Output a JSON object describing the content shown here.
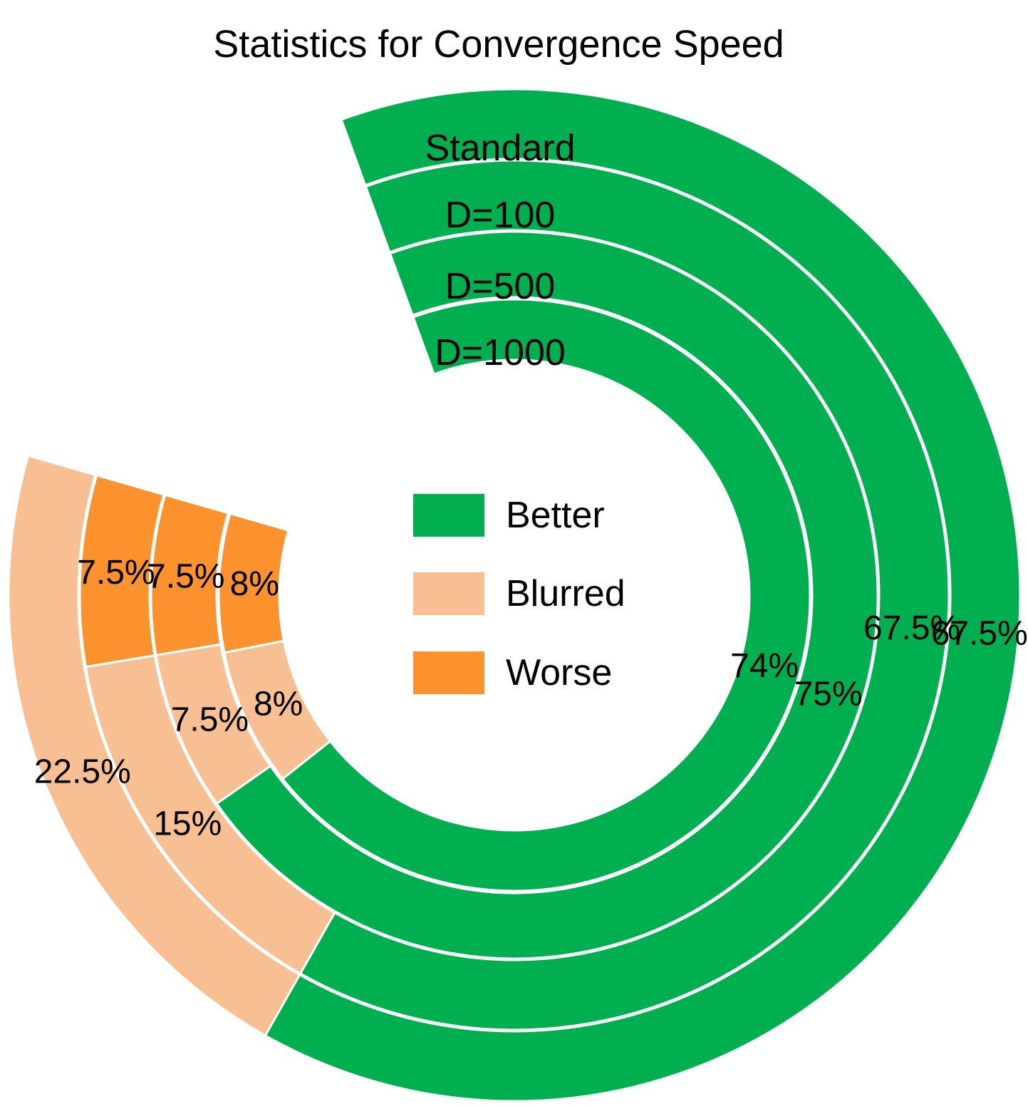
{
  "chart_data": {
    "type": "radial-bar",
    "title": "Statistics for Convergence Speed",
    "categories": [
      "Standard",
      "D=100",
      "D=500",
      "D=1000"
    ],
    "series": [
      {
        "name": "Better",
        "color": "#00b050",
        "values": [
          67.5,
          67.5,
          75,
          74
        ]
      },
      {
        "name": "Blurred",
        "color": "#f8c092",
        "values": [
          22.5,
          15,
          7.5,
          8
        ]
      },
      {
        "name": "Worse",
        "color": "#fb922d",
        "values": [
          null,
          7.5,
          7.5,
          8
        ]
      }
    ],
    "data_labels": {
      "Better": [
        "67.5%",
        "67.5%",
        "75%",
        "74%"
      ],
      "Blurred": [
        "22.5%",
        "15%",
        "7.5%",
        "8%"
      ],
      "Worse": [
        "",
        "7.5%",
        "7.5%",
        "8%"
      ]
    },
    "legend": [
      {
        "label": "Better",
        "color": "#00b050"
      },
      {
        "label": "Blurred",
        "color": "#f8c092"
      },
      {
        "label": "Worse",
        "color": "#fb922d"
      }
    ],
    "legend_position": "center"
  }
}
